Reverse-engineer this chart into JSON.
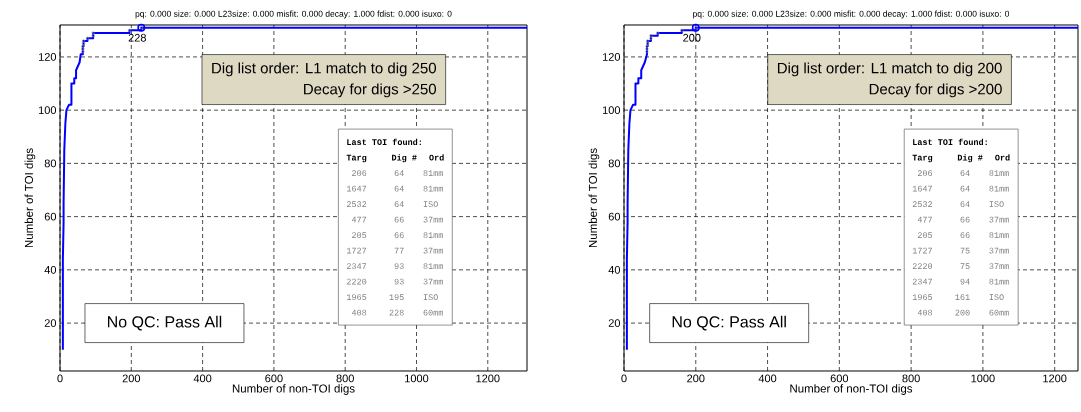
{
  "chart_data": [
    {
      "type": "line",
      "title": "pq: 0.000 size: 0.000 L23size: 0.000 misfit: 0.000 decay: 1.000 fdist: 0.000 isuxo: 0",
      "xlabel": "Number of non-TOI digs",
      "ylabel": "Number of TOI digs",
      "xlim": [
        0,
        1310
      ],
      "ylim": [
        2,
        132
      ],
      "xticks": [
        0,
        200,
        400,
        600,
        800,
        1000,
        1200
      ],
      "yticks": [
        20,
        40,
        60,
        80,
        100,
        120
      ],
      "grid": true,
      "series": [
        {
          "color": "#0000ff",
          "marker": "none",
          "line_style": "solid",
          "x": [
            8,
            8,
            10,
            10,
            12,
            15,
            18,
            25,
            32,
            32,
            40,
            40,
            45,
            45,
            55,
            58,
            64,
            64,
            66,
            66,
            77,
            77,
            93,
            93,
            195,
            195,
            228,
            228,
            1310
          ],
          "values": [
            10,
            44,
            58,
            65,
            85,
            95,
            100,
            102,
            102,
            110,
            110,
            112,
            112,
            115,
            118,
            121,
            121,
            124,
            124,
            126,
            126,
            127,
            127,
            129,
            129,
            130,
            130,
            131,
            131
          ]
        },
        {
          "type": "scatter",
          "color": "#808080",
          "marker": "circle",
          "x": [
            64,
            64,
            64,
            66,
            66,
            77,
            93,
            93,
            195,
            228
          ],
          "values": [
            122,
            123,
            124,
            125,
            126,
            127,
            128,
            129,
            130,
            131
          ]
        },
        {
          "type": "scatter",
          "color": "#0000ff",
          "marker": "circle",
          "x": [
            228
          ],
          "values": [
            131
          ]
        }
      ],
      "annotations": [
        {
          "text": "228",
          "x": 228,
          "y": 131
        },
        "Dig list order: L1 match to dig 250",
        "Decay for digs >250",
        "No QC: Pass All",
        "Last TOI found:",
        "Targ",
        "Dig #",
        "Ord",
        "206",
        "64",
        "81mm",
        "1647",
        "64",
        "81mm",
        "2532",
        "64",
        "ISO",
        "477",
        "66",
        "37mm",
        "205",
        "66",
        "81mm",
        "1727",
        "77",
        "37mm",
        "2347",
        "93",
        "81mm",
        "2220",
        "93",
        "37mm",
        "1965",
        "195",
        "ISO",
        "408",
        "228",
        "60mm"
      ]
    },
    {
      "type": "line",
      "title": "pq: 0.000 size: 0.000 L23size: 0.000 misfit: 0.000 decay: 1.000 fdist: 0.000 isuxo: 0",
      "xlabel": "Number of non-TOI digs",
      "ylabel": "Number of TOI digs",
      "xlim": [
        0,
        1265
      ],
      "ylim": [
        2,
        132
      ],
      "xticks": [
        0,
        200,
        400,
        600,
        800,
        1000,
        1200
      ],
      "yticks": [
        20,
        40,
        60,
        80,
        100,
        120
      ],
      "grid": true,
      "series": [
        {
          "color": "#0000ff",
          "marker": "none",
          "line_style": "solid",
          "x": [
            8,
            8,
            10,
            10,
            12,
            15,
            18,
            25,
            32,
            32,
            40,
            40,
            48,
            48,
            58,
            64,
            64,
            64,
            66,
            66,
            75,
            75,
            94,
            94,
            161,
            161,
            200,
            200,
            1265
          ],
          "values": [
            10,
            44,
            58,
            65,
            85,
            95,
            100,
            102,
            102,
            110,
            110,
            112,
            112,
            115,
            118,
            121,
            121,
            124,
            124,
            126,
            126,
            128,
            128,
            129,
            129,
            130,
            130,
            131,
            131
          ]
        },
        {
          "type": "scatter",
          "color": "#808080",
          "marker": "circle",
          "x": [
            64,
            64,
            64,
            66,
            66,
            75,
            75,
            94,
            161,
            200
          ],
          "values": [
            122,
            123,
            124,
            125,
            126,
            127,
            128,
            129,
            130,
            131
          ]
        },
        {
          "type": "scatter",
          "color": "#0000ff",
          "marker": "circle",
          "x": [
            200
          ],
          "values": [
            131
          ]
        }
      ],
      "annotations": [
        {
          "text": "200",
          "x": 200,
          "y": 131
        },
        "Dig list order: L1 match to dig 200",
        "Decay for digs >200",
        "No QC: Pass All",
        "Last TOI found:",
        "Targ",
        "Dig #",
        "Ord",
        "206",
        "64",
        "81mm",
        "1647",
        "64",
        "81mm",
        "2532",
        "64",
        "ISO",
        "477",
        "66",
        "37mm",
        "205",
        "66",
        "81mm",
        "1727",
        "75",
        "37mm",
        "2220",
        "75",
        "37mm",
        "2347",
        "94",
        "81mm",
        "1965",
        "161",
        "ISO",
        "408",
        "200",
        "60mm"
      ]
    }
  ]
}
